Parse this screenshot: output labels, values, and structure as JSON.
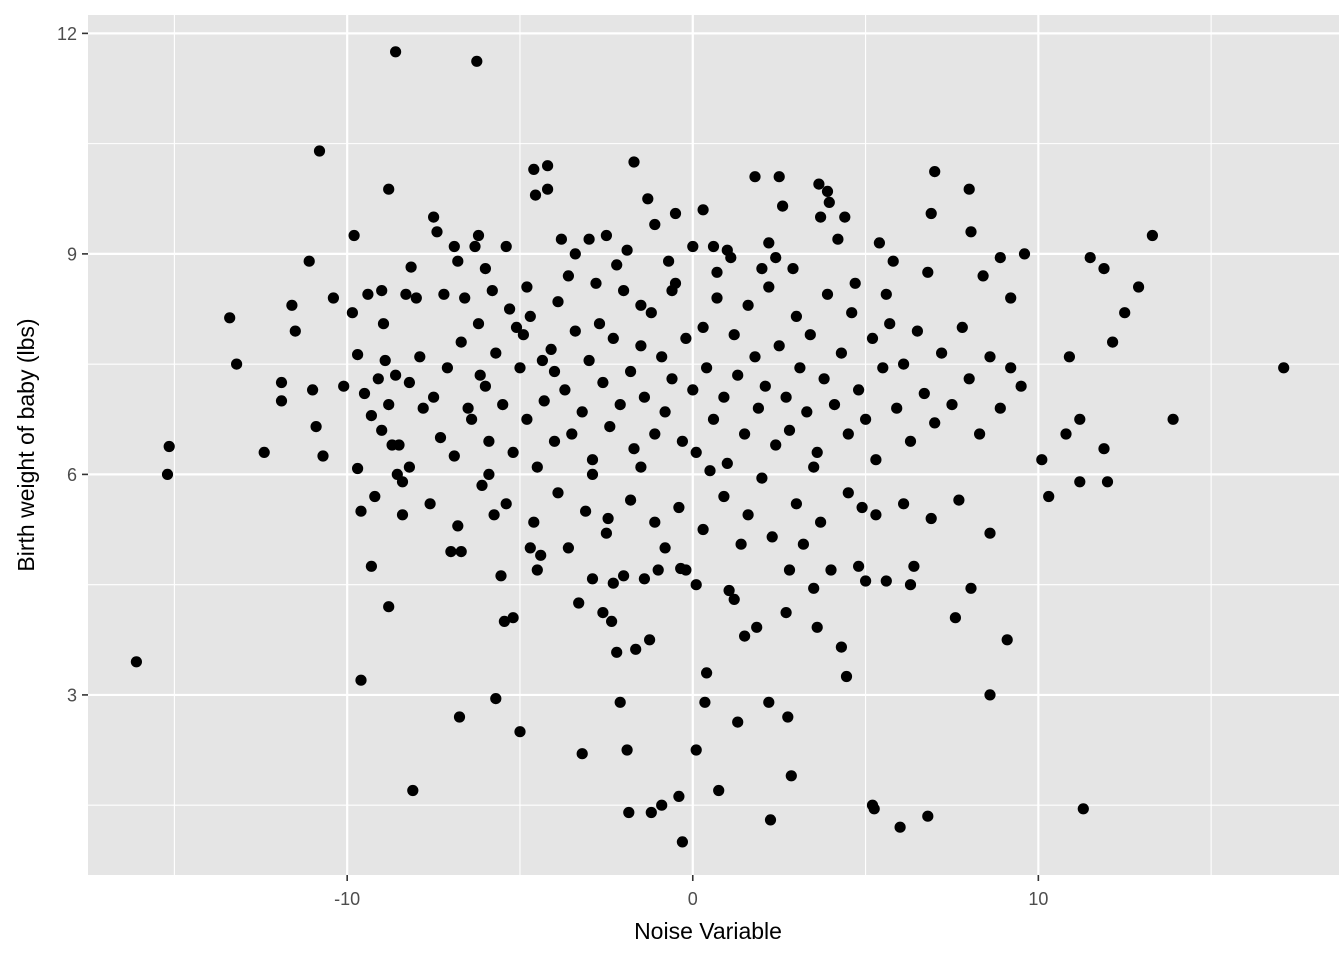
{
  "chart_data": {
    "type": "scatter",
    "title": "",
    "xlabel": "Noise Variable",
    "ylabel": "Birth weight of baby (lbs)",
    "xlim": [
      -17.5,
      18.7
    ],
    "ylim": [
      0.55,
      12.25
    ],
    "x_ticks": [
      -10,
      0,
      10
    ],
    "x_tick_labels": [
      "-10",
      "0",
      "10"
    ],
    "y_ticks": [
      3,
      6,
      9,
      12
    ],
    "y_tick_labels": [
      "3",
      "6",
      "9",
      "12"
    ],
    "grid": true,
    "legend": "none",
    "colors": {
      "panel": "#e5e5e5",
      "grid": "#ffffff",
      "point": "#000000"
    },
    "points": [
      [
        -16.1,
        3.45
      ],
      [
        -15.2,
        6.0
      ],
      [
        -15.15,
        6.38
      ],
      [
        -13.4,
        8.13
      ],
      [
        -13.2,
        7.5
      ],
      [
        -12.4,
        6.3
      ],
      [
        -11.9,
        7.25
      ],
      [
        -11.9,
        7.0
      ],
      [
        -11.6,
        8.3
      ],
      [
        -11.5,
        7.95
      ],
      [
        -11.1,
        8.9
      ],
      [
        -11.0,
        7.15
      ],
      [
        -10.9,
        6.65
      ],
      [
        -10.8,
        10.4
      ],
      [
        -10.7,
        6.25
      ],
      [
        -10.4,
        8.4
      ],
      [
        -10.1,
        7.2
      ],
      [
        -9.85,
        8.2
      ],
      [
        -9.8,
        9.25
      ],
      [
        -9.7,
        7.63
      ],
      [
        -9.7,
        6.08
      ],
      [
        -9.6,
        5.5
      ],
      [
        -9.6,
        3.2
      ],
      [
        -9.4,
        8.45
      ],
      [
        -9.3,
        4.75
      ],
      [
        -9.2,
        5.7
      ],
      [
        -9.1,
        7.3
      ],
      [
        -9.0,
        8.5
      ],
      [
        -8.95,
        8.05
      ],
      [
        -8.9,
        7.55
      ],
      [
        -8.8,
        9.88
      ],
      [
        -8.8,
        4.2
      ],
      [
        -8.7,
        6.4
      ],
      [
        -8.6,
        11.75
      ],
      [
        -8.55,
        6.0
      ],
      [
        -8.4,
        5.45
      ],
      [
        -8.3,
        8.45
      ],
      [
        -8.2,
        6.1
      ],
      [
        -8.15,
        8.82
      ],
      [
        -8.1,
        1.7
      ],
      [
        -8.0,
        8.4
      ],
      [
        -7.9,
        7.6
      ],
      [
        -7.5,
        9.5
      ],
      [
        -7.4,
        9.3
      ],
      [
        -7.2,
        8.45
      ],
      [
        -7.0,
        4.95
      ],
      [
        -6.9,
        9.1
      ],
      [
        -6.8,
        8.9
      ],
      [
        -6.75,
        2.7
      ],
      [
        -6.7,
        4.95
      ],
      [
        -6.6,
        8.4
      ],
      [
        -6.5,
        6.9
      ],
      [
        -6.3,
        9.1
      ],
      [
        -6.25,
        11.62
      ],
      [
        -6.2,
        9.25
      ],
      [
        -6.15,
        7.35
      ],
      [
        -6.0,
        8.8
      ],
      [
        -5.9,
        6.0
      ],
      [
        -5.8,
        8.5
      ],
      [
        -5.75,
        5.45
      ],
      [
        -5.7,
        2.95
      ],
      [
        -5.55,
        4.62
      ],
      [
        -5.45,
        4.0
      ],
      [
        -5.4,
        9.1
      ],
      [
        -5.2,
        4.05
      ],
      [
        -5.1,
        8.0
      ],
      [
        -5.0,
        2.5
      ],
      [
        -4.9,
        7.9
      ],
      [
        -4.7,
        5.0
      ],
      [
        -4.6,
        10.15
      ],
      [
        -4.55,
        9.8
      ],
      [
        -4.5,
        4.7
      ],
      [
        -4.4,
        4.9
      ],
      [
        -4.35,
        7.55
      ],
      [
        -4.2,
        10.2
      ],
      [
        -4.2,
        9.88
      ],
      [
        -4.0,
        7.4
      ],
      [
        -3.8,
        9.2
      ],
      [
        -3.6,
        5.0
      ],
      [
        -3.4,
        9.0
      ],
      [
        -3.3,
        4.25
      ],
      [
        -3.2,
        2.2
      ],
      [
        -3.0,
        9.2
      ],
      [
        -2.9,
        4.58
      ],
      [
        -2.8,
        8.6
      ],
      [
        -2.6,
        4.12
      ],
      [
        -2.5,
        9.25
      ],
      [
        -2.45,
        5.4
      ],
      [
        -2.35,
        4.0
      ],
      [
        -2.3,
        4.52
      ],
      [
        -2.2,
        3.58
      ],
      [
        -2.1,
        2.9
      ],
      [
        -2.0,
        4.62
      ],
      [
        -1.9,
        2.25
      ],
      [
        -1.85,
        1.4
      ],
      [
        -1.7,
        10.25
      ],
      [
        -1.65,
        3.62
      ],
      [
        -1.5,
        8.3
      ],
      [
        -1.4,
        4.58
      ],
      [
        -1.3,
        9.75
      ],
      [
        -1.25,
        3.75
      ],
      [
        -1.2,
        1.4
      ],
      [
        -1.1,
        9.4
      ],
      [
        -1.0,
        4.7
      ],
      [
        -0.9,
        1.5
      ],
      [
        -0.8,
        5.0
      ],
      [
        -0.6,
        8.5
      ],
      [
        -0.5,
        9.55
      ],
      [
        -0.4,
        1.62
      ],
      [
        -0.35,
        4.72
      ],
      [
        -0.3,
        1.0
      ],
      [
        -0.2,
        4.7
      ],
      [
        0.0,
        9.1
      ],
      [
        0.1,
        2.25
      ],
      [
        0.1,
        4.5
      ],
      [
        0.3,
        9.6
      ],
      [
        0.35,
        2.9
      ],
      [
        0.4,
        3.3
      ],
      [
        0.7,
        8.75
      ],
      [
        0.75,
        1.7
      ],
      [
        1.0,
        9.05
      ],
      [
        1.05,
        4.42
      ],
      [
        1.2,
        4.3
      ],
      [
        1.3,
        2.63
      ],
      [
        1.4,
        5.05
      ],
      [
        1.5,
        3.8
      ],
      [
        1.8,
        10.05
      ],
      [
        1.85,
        3.92
      ],
      [
        2.0,
        8.8
      ],
      [
        2.2,
        9.15
      ],
      [
        2.2,
        2.9
      ],
      [
        2.25,
        1.3
      ],
      [
        2.5,
        10.05
      ],
      [
        2.6,
        9.65
      ],
      [
        2.7,
        4.12
      ],
      [
        2.75,
        2.7
      ],
      [
        2.8,
        4.7
      ],
      [
        2.85,
        1.9
      ],
      [
        3.2,
        5.05
      ],
      [
        3.5,
        4.45
      ],
      [
        3.6,
        3.92
      ],
      [
        3.65,
        9.95
      ],
      [
        3.7,
        9.5
      ],
      [
        3.9,
        9.85
      ],
      [
        3.95,
        9.7
      ],
      [
        4.0,
        4.7
      ],
      [
        4.2,
        9.2
      ],
      [
        4.3,
        3.65
      ],
      [
        4.4,
        9.5
      ],
      [
        4.45,
        3.25
      ],
      [
        4.8,
        4.75
      ],
      [
        4.9,
        5.55
      ],
      [
        5.0,
        4.55
      ],
      [
        5.2,
        1.5
      ],
      [
        5.25,
        1.45
      ],
      [
        5.4,
        9.15
      ],
      [
        5.6,
        4.55
      ],
      [
        5.8,
        8.9
      ],
      [
        6.0,
        1.2
      ],
      [
        6.3,
        4.5
      ],
      [
        6.4,
        4.75
      ],
      [
        6.8,
        8.75
      ],
      [
        6.8,
        1.35
      ],
      [
        6.9,
        9.55
      ],
      [
        7.0,
        10.12
      ],
      [
        7.6,
        4.05
      ],
      [
        8.0,
        9.88
      ],
      [
        8.05,
        4.45
      ],
      [
        8.05,
        9.3
      ],
      [
        8.4,
        8.7
      ],
      [
        8.6,
        3.0
      ],
      [
        8.9,
        8.95
      ],
      [
        9.1,
        3.75
      ],
      [
        9.2,
        8.4
      ],
      [
        9.6,
        9.0
      ],
      [
        10.1,
        6.2
      ],
      [
        10.3,
        5.7
      ],
      [
        10.8,
        6.55
      ],
      [
        10.9,
        7.6
      ],
      [
        11.2,
        6.75
      ],
      [
        11.2,
        5.9
      ],
      [
        11.3,
        1.45
      ],
      [
        11.5,
        8.95
      ],
      [
        11.9,
        8.8
      ],
      [
        11.9,
        6.35
      ],
      [
        12.0,
        5.9
      ],
      [
        12.15,
        7.8
      ],
      [
        12.5,
        8.2
      ],
      [
        12.9,
        8.55
      ],
      [
        13.3,
        9.25
      ],
      [
        13.9,
        6.75
      ],
      [
        17.1,
        7.45
      ],
      [
        -9.5,
        7.1
      ],
      [
        -9.3,
        6.8
      ],
      [
        -9.0,
        6.6
      ],
      [
        -8.8,
        6.95
      ],
      [
        -8.6,
        7.35
      ],
      [
        -8.5,
        6.4
      ],
      [
        -8.2,
        7.25
      ],
      [
        -7.8,
        6.9
      ],
      [
        -7.5,
        7.05
      ],
      [
        -7.3,
        6.5
      ],
      [
        -7.1,
        7.45
      ],
      [
        -6.9,
        6.25
      ],
      [
        -6.7,
        7.8
      ],
      [
        -6.4,
        6.75
      ],
      [
        -6.2,
        8.05
      ],
      [
        -6.0,
        7.2
      ],
      [
        -5.9,
        6.45
      ],
      [
        -5.7,
        7.65
      ],
      [
        -5.5,
        6.95
      ],
      [
        -5.3,
        8.25
      ],
      [
        -5.2,
        6.3
      ],
      [
        -5.0,
        7.45
      ],
      [
        -4.8,
        6.75
      ],
      [
        -4.7,
        8.15
      ],
      [
        -4.5,
        6.1
      ],
      [
        -4.3,
        7.0
      ],
      [
        -4.1,
        7.7
      ],
      [
        -4.0,
        6.45
      ],
      [
        -3.9,
        8.35
      ],
      [
        -3.7,
        7.15
      ],
      [
        -3.5,
        6.55
      ],
      [
        -3.4,
        7.95
      ],
      [
        -3.2,
        6.85
      ],
      [
        -3.0,
        7.55
      ],
      [
        -2.9,
        6.2
      ],
      [
        -2.7,
        8.05
      ],
      [
        -2.6,
        7.25
      ],
      [
        -2.4,
        6.65
      ],
      [
        -2.3,
        7.85
      ],
      [
        -2.1,
        6.95
      ],
      [
        -2.0,
        8.5
      ],
      [
        -1.8,
        7.4
      ],
      [
        -1.7,
        6.35
      ],
      [
        -1.5,
        7.75
      ],
      [
        -1.4,
        7.05
      ],
      [
        -1.2,
        8.2
      ],
      [
        -1.1,
        6.55
      ],
      [
        -0.9,
        7.6
      ],
      [
        -0.8,
        6.85
      ],
      [
        -0.6,
        7.3
      ],
      [
        -0.5,
        8.6
      ],
      [
        -0.3,
        6.45
      ],
      [
        -0.2,
        7.85
      ],
      [
        0.0,
        7.15
      ],
      [
        0.1,
        6.3
      ],
      [
        0.3,
        8.0
      ],
      [
        0.4,
        7.45
      ],
      [
        0.6,
        6.75
      ],
      [
        0.7,
        8.4
      ],
      [
        0.9,
        7.05
      ],
      [
        1.0,
        6.15
      ],
      [
        1.2,
        7.9
      ],
      [
        1.3,
        7.35
      ],
      [
        1.5,
        6.55
      ],
      [
        1.6,
        8.3
      ],
      [
        1.8,
        7.6
      ],
      [
        1.9,
        6.9
      ],
      [
        2.1,
        7.2
      ],
      [
        2.2,
        8.55
      ],
      [
        2.4,
        6.4
      ],
      [
        2.5,
        7.75
      ],
      [
        2.7,
        7.05
      ],
      [
        2.8,
        6.6
      ],
      [
        3.0,
        8.15
      ],
      [
        3.1,
        7.45
      ],
      [
        3.3,
        6.85
      ],
      [
        3.4,
        7.9
      ],
      [
        3.6,
        6.3
      ],
      [
        3.8,
        7.3
      ],
      [
        3.9,
        8.45
      ],
      [
        4.1,
        6.95
      ],
      [
        4.3,
        7.65
      ],
      [
        4.5,
        6.55
      ],
      [
        4.6,
        8.2
      ],
      [
        4.8,
        7.15
      ],
      [
        5.0,
        6.75
      ],
      [
        5.2,
        7.85
      ],
      [
        5.3,
        6.2
      ],
      [
        5.5,
        7.45
      ],
      [
        5.7,
        8.05
      ],
      [
        5.9,
        6.9
      ],
      [
        6.1,
        7.5
      ],
      [
        6.3,
        6.45
      ],
      [
        6.5,
        7.95
      ],
      [
        6.7,
        7.1
      ],
      [
        7.0,
        6.7
      ],
      [
        7.2,
        7.65
      ],
      [
        7.5,
        6.95
      ],
      [
        7.8,
        8.0
      ],
      [
        8.0,
        7.3
      ],
      [
        8.3,
        6.55
      ],
      [
        8.6,
        7.6
      ],
      [
        8.9,
        6.9
      ],
      [
        9.2,
        7.45
      ],
      [
        9.5,
        7.2
      ],
      [
        -8.4,
        5.9
      ],
      [
        -7.6,
        5.6
      ],
      [
        -6.8,
        5.3
      ],
      [
        -6.1,
        5.85
      ],
      [
        -5.4,
        5.6
      ],
      [
        -4.6,
        5.35
      ],
      [
        -3.9,
        5.75
      ],
      [
        -3.1,
        5.5
      ],
      [
        -2.5,
        5.2
      ],
      [
        -1.8,
        5.65
      ],
      [
        -1.1,
        5.35
      ],
      [
        -0.4,
        5.55
      ],
      [
        0.3,
        5.25
      ],
      [
        0.9,
        5.7
      ],
      [
        1.6,
        5.45
      ],
      [
        2.3,
        5.15
      ],
      [
        3.0,
        5.6
      ],
      [
        3.7,
        5.35
      ],
      [
        4.5,
        5.75
      ],
      [
        5.3,
        5.45
      ],
      [
        6.1,
        5.6
      ],
      [
        6.9,
        5.4
      ],
      [
        7.7,
        5.65
      ],
      [
        8.6,
        5.2
      ],
      [
        -2.9,
        6.0
      ],
      [
        -1.5,
        6.1
      ],
      [
        0.5,
        6.05
      ],
      [
        2.0,
        5.95
      ],
      [
        3.5,
        6.1
      ],
      [
        -0.7,
        8.9
      ],
      [
        1.1,
        8.95
      ],
      [
        -2.2,
        8.85
      ],
      [
        2.9,
        8.8
      ],
      [
        -3.6,
        8.7
      ],
      [
        4.7,
        8.6
      ],
      [
        -1.9,
        9.05
      ],
      [
        0.6,
        9.1
      ],
      [
        2.4,
        8.95
      ],
      [
        -4.8,
        8.55
      ],
      [
        5.6,
        8.45
      ]
    ]
  }
}
